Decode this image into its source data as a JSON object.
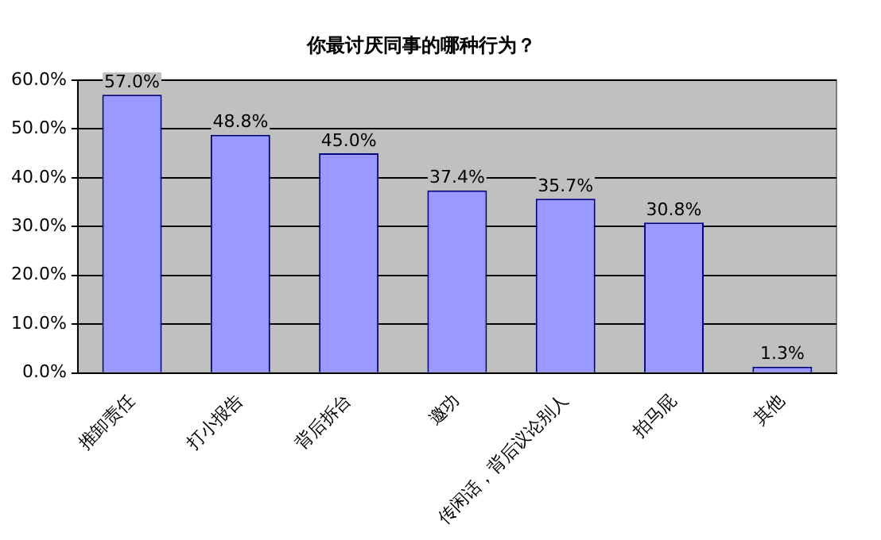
{
  "chart_data": {
    "type": "bar",
    "title": "你最讨厌同事的哪种行为？",
    "categories": [
      "推卸责任",
      "打小报告",
      "背后拆台",
      "邀功",
      "传闲话，背后议论别人",
      "拍马屁",
      "其他"
    ],
    "values": [
      57.0,
      48.8,
      45.0,
      37.4,
      35.7,
      30.8,
      1.3
    ],
    "value_labels": [
      "57.0%",
      "48.8%",
      "45.0%",
      "37.4%",
      "35.7%",
      "30.8%",
      "1.3%"
    ],
    "color": "#9999ff",
    "ylim": [
      0,
      60
    ],
    "yticks": [
      {
        "value": 0,
        "label": "0.0%"
      },
      {
        "value": 10,
        "label": "10.0%"
      },
      {
        "value": 20,
        "label": "20.0%"
      },
      {
        "value": 30,
        "label": "30.0%"
      },
      {
        "value": 40,
        "label": "40.0%"
      },
      {
        "value": 50,
        "label": "50.0%"
      },
      {
        "value": 60,
        "label": "60.0%"
      }
    ],
    "grid": "y",
    "legend": false
  }
}
